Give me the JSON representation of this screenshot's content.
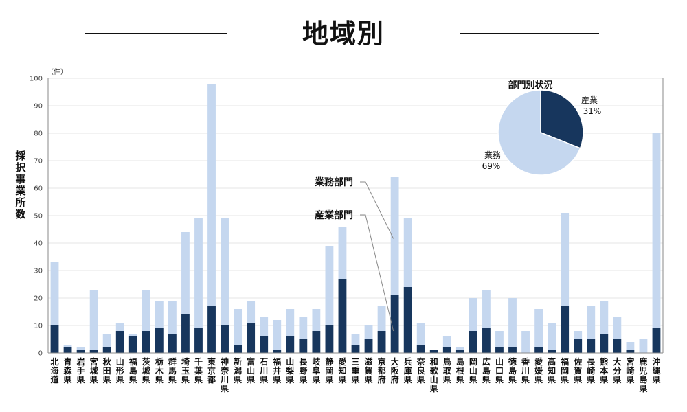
{
  "title": "地域別",
  "chart_data": {
    "type": "bar",
    "stacked": true,
    "ylabel": "採択事業所数",
    "yunit": "（件）",
    "ylim": [
      0,
      100
    ],
    "yticks": [
      0,
      10,
      20,
      30,
      40,
      50,
      60,
      70,
      80,
      90,
      100
    ],
    "colors": {
      "産業部門": "#17365d",
      "業務部門": "#c5d7ef"
    },
    "categories": [
      "北海道",
      "青森県",
      "岩手県",
      "宮城県",
      "秋田県",
      "山形県",
      "福島県",
      "茨城県",
      "栃木県",
      "群馬県",
      "埼玉県",
      "千葉県",
      "東京都",
      "神奈川県",
      "新潟県",
      "富山県",
      "石川県",
      "福井県",
      "山梨県",
      "長野県",
      "岐阜県",
      "静岡県",
      "愛知県",
      "三重県",
      "滋賀県",
      "京都府",
      "大阪府",
      "兵庫県",
      "奈良県",
      "和歌山県",
      "鳥取県",
      "島根県",
      "岡山県",
      "広島県",
      "山口県",
      "徳島県",
      "香川県",
      "愛媛県",
      "高知県",
      "福岡県",
      "佐賀県",
      "長崎県",
      "熊本県",
      "大分県",
      "宮崎県",
      "鹿児島県",
      "沖縄県"
    ],
    "series": [
      {
        "name": "産業部門",
        "values": [
          10,
          2,
          1,
          1,
          2,
          8,
          6,
          8,
          9,
          7,
          14,
          9,
          17,
          10,
          3,
          11,
          6,
          1,
          6,
          5,
          8,
          10,
          27,
          3,
          5,
          8,
          21,
          24,
          3,
          1,
          2,
          1,
          8,
          9,
          2,
          2,
          0,
          2,
          1,
          17,
          5,
          5,
          7,
          5,
          1,
          0,
          9
        ]
      },
      {
        "name": "業務部門",
        "values": [
          23,
          1,
          1,
          22,
          5,
          3,
          1,
          15,
          10,
          12,
          30,
          40,
          81,
          39,
          13,
          8,
          7,
          11,
          10,
          8,
          8,
          29,
          19,
          4,
          5,
          9,
          43,
          25,
          8,
          0,
          4,
          1,
          12,
          14,
          6,
          18,
          8,
          14,
          10,
          34,
          3,
          12,
          12,
          8,
          3,
          5,
          71
        ]
      }
    ],
    "callouts": [
      {
        "label": "業務部門",
        "target": "大阪府",
        "series": "業務部門"
      },
      {
        "label": "産業部門",
        "target": "大阪府",
        "series": "産業部門"
      }
    ],
    "inset": {
      "type": "pie",
      "title": "部門別状況",
      "slices": [
        {
          "name": "産業",
          "percent": 31,
          "label": "31%",
          "color": "#17365d"
        },
        {
          "name": "業務",
          "percent": 69,
          "label": "69%",
          "color": "#c5d7ef"
        }
      ]
    }
  }
}
